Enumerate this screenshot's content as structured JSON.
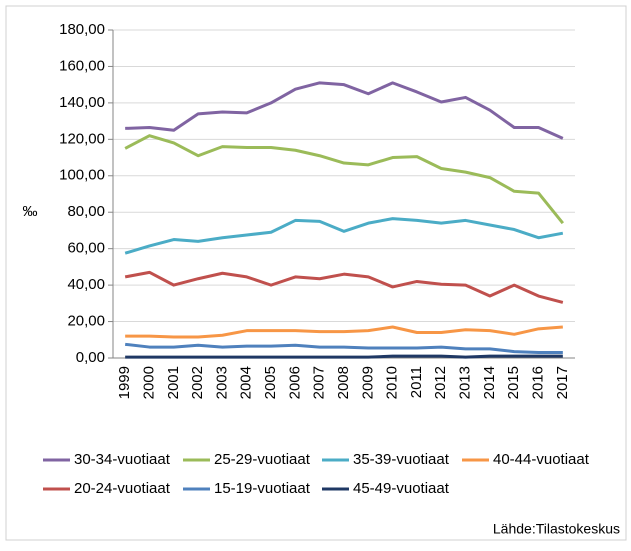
{
  "chart_data": {
    "type": "line",
    "y_label": "‰",
    "source": "Lähde:Tilastokeskus",
    "categories": [
      "1999",
      "2000",
      "2001",
      "2002",
      "2003",
      "2004",
      "2005",
      "2006",
      "2007",
      "2008",
      "2009",
      "2010",
      "2011",
      "2012",
      "2013",
      "2014",
      "2015",
      "2016",
      "2017"
    ],
    "series": [
      {
        "name": "30-34-vuotiaat",
        "color": "#8064a2",
        "values": [
          126,
          126.5,
          125,
          134,
          135,
          134.5,
          140,
          147.5,
          151,
          150,
          145,
          151,
          146,
          140.5,
          143,
          136,
          126.5,
          126.5,
          120.5
        ]
      },
      {
        "name": "25-29-vuotiaat",
        "color": "#9bbb59",
        "values": [
          115,
          122,
          118,
          111,
          116,
          115.5,
          115.5,
          114,
          111,
          107,
          106,
          110,
          110.5,
          104,
          102,
          99,
          91.5,
          90.5,
          74
        ]
      },
      {
        "name": "35-39-vuotiaat",
        "color": "#4bacc6",
        "values": [
          57.5,
          61.5,
          65,
          64,
          66,
          67.5,
          69,
          75.5,
          75,
          69.5,
          74,
          76.5,
          75.5,
          74,
          75.5,
          73,
          70.5,
          66,
          68.5
        ]
      },
      {
        "name": "40-44-vuotiaat",
        "color": "#f79646",
        "values": [
          12,
          12,
          11.5,
          11.5,
          12.5,
          15,
          15,
          15,
          14.5,
          14.5,
          15,
          17,
          14,
          14,
          15.5,
          15,
          13,
          16,
          17
        ]
      },
      {
        "name": "20-24-vuotiaat",
        "color": "#c0504d",
        "values": [
          44.5,
          47,
          40,
          43.5,
          46.5,
          44.5,
          40,
          44.5,
          43.5,
          46,
          44.5,
          39,
          42,
          40.5,
          40,
          34,
          40,
          34,
          30.5
        ]
      },
      {
        "name": "15-19-vuotiaat",
        "color": "#4f81bd",
        "values": [
          7.5,
          6,
          6,
          7,
          6,
          6.5,
          6.5,
          7,
          6,
          6,
          5.5,
          5.5,
          5.5,
          6,
          5,
          5,
          3.5,
          3,
          3
        ]
      },
      {
        "name": "45-49-vuotiaat",
        "color": "#1f3864",
        "values": [
          0.5,
          0.5,
          0.5,
          0.5,
          0.5,
          0.5,
          0.5,
          0.5,
          0.5,
          0.5,
          0.5,
          1,
          1,
          1,
          0.5,
          1,
          1,
          1,
          1
        ]
      }
    ],
    "ylim": [
      0,
      180
    ],
    "yticks": [
      {
        "value": 0,
        "label": "0,00"
      },
      {
        "value": 20,
        "label": "20,00"
      },
      {
        "value": 40,
        "label": "40,00"
      },
      {
        "value": 60,
        "label": "60,00"
      },
      {
        "value": 80,
        "label": "80,00"
      },
      {
        "value": 100,
        "label": "100,00"
      },
      {
        "value": 120,
        "label": "120,00"
      },
      {
        "value": 140,
        "label": "140,00"
      },
      {
        "value": 160,
        "label": "160,00"
      },
      {
        "value": 180,
        "label": "180,00"
      }
    ],
    "grid": true
  }
}
